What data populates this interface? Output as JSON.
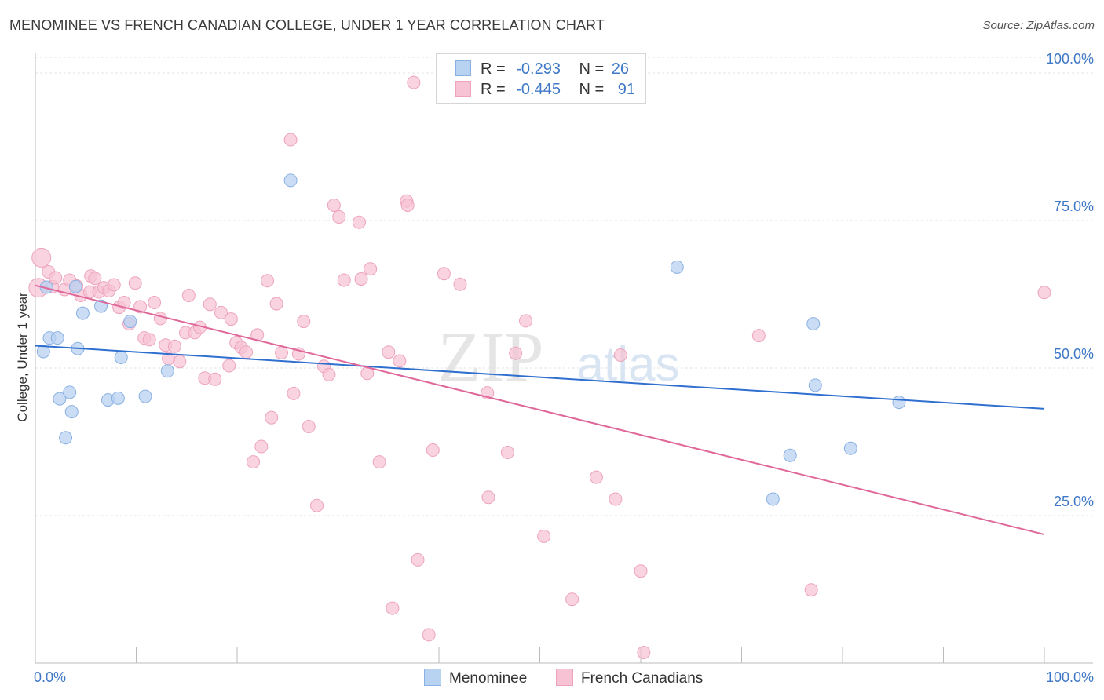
{
  "header": {
    "title": "MENOMINEE VS FRENCH CANADIAN COLLEGE, UNDER 1 YEAR CORRELATION CHART",
    "source": "Source: ZipAtlas.com"
  },
  "legend": {
    "r_label": "R =",
    "n_label": "N =",
    "rows": [
      {
        "r": "-0.293",
        "n": "26"
      },
      {
        "r": "-0.445",
        "n": "91"
      }
    ]
  },
  "watermark": {
    "zip": "ZIP",
    "atlas": "atlas"
  },
  "colors": {
    "menominee_fill": "#b8d2f2",
    "menominee_stroke": "#8ab1e3",
    "menominee_line": "#2f6fcf",
    "french_fill": "#f7c2d3",
    "french_stroke": "#eda3bc",
    "french_line": "#e0679a",
    "tick_text": "#3f78c6",
    "grid": "#e3e3e3"
  },
  "chart_data": {
    "type": "scatter",
    "title": "MENOMINEE VS FRENCH CANADIAN COLLEGE, UNDER 1 YEAR CORRELATION CHART",
    "xlabel": "",
    "ylabel": "College, Under 1 year",
    "xlim": [
      0,
      100
    ],
    "ylim": [
      0,
      102
    ],
    "x_tick_labels": [
      "0.0%",
      "100.0%"
    ],
    "y_ticks": [
      25,
      50,
      75,
      100
    ],
    "y_tick_labels": [
      "25.0%",
      "50.0%",
      "75.0%",
      "100.0%"
    ],
    "grid": true,
    "legend_position": "top-center and bottom",
    "series": [
      {
        "name": "Menominee",
        "r": -0.293,
        "n": 26,
        "trend": {
          "x": [
            0,
            100
          ],
          "y": [
            53.8,
            43.1
          ]
        },
        "points": [
          {
            "x": 0.8,
            "y": 52.8
          },
          {
            "x": 1.1,
            "y": 63.7
          },
          {
            "x": 1.4,
            "y": 55.1
          },
          {
            "x": 2.2,
            "y": 55.1
          },
          {
            "x": 2.4,
            "y": 44.8
          },
          {
            "x": 3,
            "y": 38.2
          },
          {
            "x": 3.4,
            "y": 45.9
          },
          {
            "x": 3.6,
            "y": 42.6
          },
          {
            "x": 4.2,
            "y": 53.3
          },
          {
            "x": 4.7,
            "y": 59.3
          },
          {
            "x": 6.5,
            "y": 60.5
          },
          {
            "x": 7.2,
            "y": 44.6
          },
          {
            "x": 8.2,
            "y": 44.9
          },
          {
            "x": 8.5,
            "y": 51.8
          },
          {
            "x": 9.4,
            "y": 57.9
          },
          {
            "x": 10.9,
            "y": 45.2
          },
          {
            "x": 13.1,
            "y": 49.5
          },
          {
            "x": 25.3,
            "y": 81.8
          },
          {
            "x": 63.6,
            "y": 67.1
          },
          {
            "x": 73.1,
            "y": 27.8
          },
          {
            "x": 74.8,
            "y": 35.2
          },
          {
            "x": 77.1,
            "y": 57.5
          },
          {
            "x": 77.3,
            "y": 47.1
          },
          {
            "x": 80.8,
            "y": 36.4
          },
          {
            "x": 85.6,
            "y": 44.2
          },
          {
            "x": 4.0,
            "y": 63.8
          }
        ]
      },
      {
        "name": "French Canadians",
        "r": -0.445,
        "n": 91,
        "trend": {
          "x": [
            0,
            100
          ],
          "y": [
            64.0,
            21.8
          ]
        },
        "points": [
          {
            "x": 0.3,
            "y": 63.6
          },
          {
            "x": 0.6,
            "y": 68.7
          },
          {
            "x": 1.3,
            "y": 66.3
          },
          {
            "x": 1.7,
            "y": 63.8
          },
          {
            "x": 2.0,
            "y": 65.3
          },
          {
            "x": 2.9,
            "y": 63.3
          },
          {
            "x": 3.4,
            "y": 64.9
          },
          {
            "x": 4.1,
            "y": 63.9
          },
          {
            "x": 4.5,
            "y": 62.3
          },
          {
            "x": 5.4,
            "y": 62.9
          },
          {
            "x": 5.5,
            "y": 65.6
          },
          {
            "x": 5.9,
            "y": 65.2
          },
          {
            "x": 6.3,
            "y": 62.9
          },
          {
            "x": 6.8,
            "y": 63.6
          },
          {
            "x": 7.3,
            "y": 63.1
          },
          {
            "x": 7.8,
            "y": 64.1
          },
          {
            "x": 8.3,
            "y": 60.3
          },
          {
            "x": 8.8,
            "y": 61.1
          },
          {
            "x": 9.3,
            "y": 57.5
          },
          {
            "x": 9.9,
            "y": 64.4
          },
          {
            "x": 10.4,
            "y": 60.4
          },
          {
            "x": 10.8,
            "y": 55.1
          },
          {
            "x": 11.3,
            "y": 54.8
          },
          {
            "x": 11.8,
            "y": 61.1
          },
          {
            "x": 12.4,
            "y": 58.4
          },
          {
            "x": 12.9,
            "y": 53.9
          },
          {
            "x": 13.2,
            "y": 51.6
          },
          {
            "x": 13.8,
            "y": 53.7
          },
          {
            "x": 14.3,
            "y": 51.1
          },
          {
            "x": 14.9,
            "y": 56.0
          },
          {
            "x": 15.2,
            "y": 62.3
          },
          {
            "x": 15.8,
            "y": 56.0
          },
          {
            "x": 16.3,
            "y": 56.9
          },
          {
            "x": 16.8,
            "y": 48.3
          },
          {
            "x": 17.3,
            "y": 60.8
          },
          {
            "x": 17.8,
            "y": 48.1
          },
          {
            "x": 18.4,
            "y": 59.4
          },
          {
            "x": 19.2,
            "y": 50.4
          },
          {
            "x": 19.4,
            "y": 58.3
          },
          {
            "x": 19.9,
            "y": 54.3
          },
          {
            "x": 20.4,
            "y": 53.5
          },
          {
            "x": 20.9,
            "y": 52.7
          },
          {
            "x": 21.6,
            "y": 34.1
          },
          {
            "x": 22.0,
            "y": 55.6
          },
          {
            "x": 22.4,
            "y": 36.7
          },
          {
            "x": 23.0,
            "y": 64.8
          },
          {
            "x": 23.4,
            "y": 41.6
          },
          {
            "x": 23.9,
            "y": 60.9
          },
          {
            "x": 24.4,
            "y": 52.6
          },
          {
            "x": 25.3,
            "y": 88.7
          },
          {
            "x": 25.6,
            "y": 45.7
          },
          {
            "x": 26.1,
            "y": 52.4
          },
          {
            "x": 26.6,
            "y": 57.9
          },
          {
            "x": 27.1,
            "y": 40.1
          },
          {
            "x": 27.9,
            "y": 26.7
          },
          {
            "x": 28.6,
            "y": 50.3
          },
          {
            "x": 29.1,
            "y": 48.9
          },
          {
            "x": 29.6,
            "y": 77.6
          },
          {
            "x": 30.1,
            "y": 75.6
          },
          {
            "x": 30.6,
            "y": 64.9
          },
          {
            "x": 32.1,
            "y": 74.7
          },
          {
            "x": 32.3,
            "y": 65.1
          },
          {
            "x": 32.9,
            "y": 49.1
          },
          {
            "x": 33.2,
            "y": 66.8
          },
          {
            "x": 34.1,
            "y": 34.1
          },
          {
            "x": 35.0,
            "y": 52.7
          },
          {
            "x": 35.4,
            "y": 9.3
          },
          {
            "x": 36.1,
            "y": 51.2
          },
          {
            "x": 36.8,
            "y": 78.3
          },
          {
            "x": 36.9,
            "y": 77.6
          },
          {
            "x": 37.5,
            "y": 98.4
          },
          {
            "x": 37.9,
            "y": 17.5
          },
          {
            "x": 39.0,
            "y": 4.8
          },
          {
            "x": 39.4,
            "y": 36.1
          },
          {
            "x": 40.5,
            "y": 66.0
          },
          {
            "x": 42.1,
            "y": 64.2
          },
          {
            "x": 44.8,
            "y": 45.8
          },
          {
            "x": 44.9,
            "y": 28.1
          },
          {
            "x": 46.8,
            "y": 35.7
          },
          {
            "x": 47.6,
            "y": 52.5
          },
          {
            "x": 48.6,
            "y": 58.0
          },
          {
            "x": 50.4,
            "y": 21.5
          },
          {
            "x": 53.2,
            "y": 10.8
          },
          {
            "x": 55.6,
            "y": 31.5
          },
          {
            "x": 57.5,
            "y": 27.8
          },
          {
            "x": 58.0,
            "y": 52.2
          },
          {
            "x": 60.0,
            "y": 15.6
          },
          {
            "x": 60.3,
            "y": 1.8
          },
          {
            "x": 71.7,
            "y": 55.5
          },
          {
            "x": 76.9,
            "y": 12.4
          },
          {
            "x": 100.0,
            "y": 62.8
          }
        ]
      }
    ]
  },
  "bottom_legend": {
    "items": [
      "Menominee",
      "French Canadians"
    ]
  }
}
